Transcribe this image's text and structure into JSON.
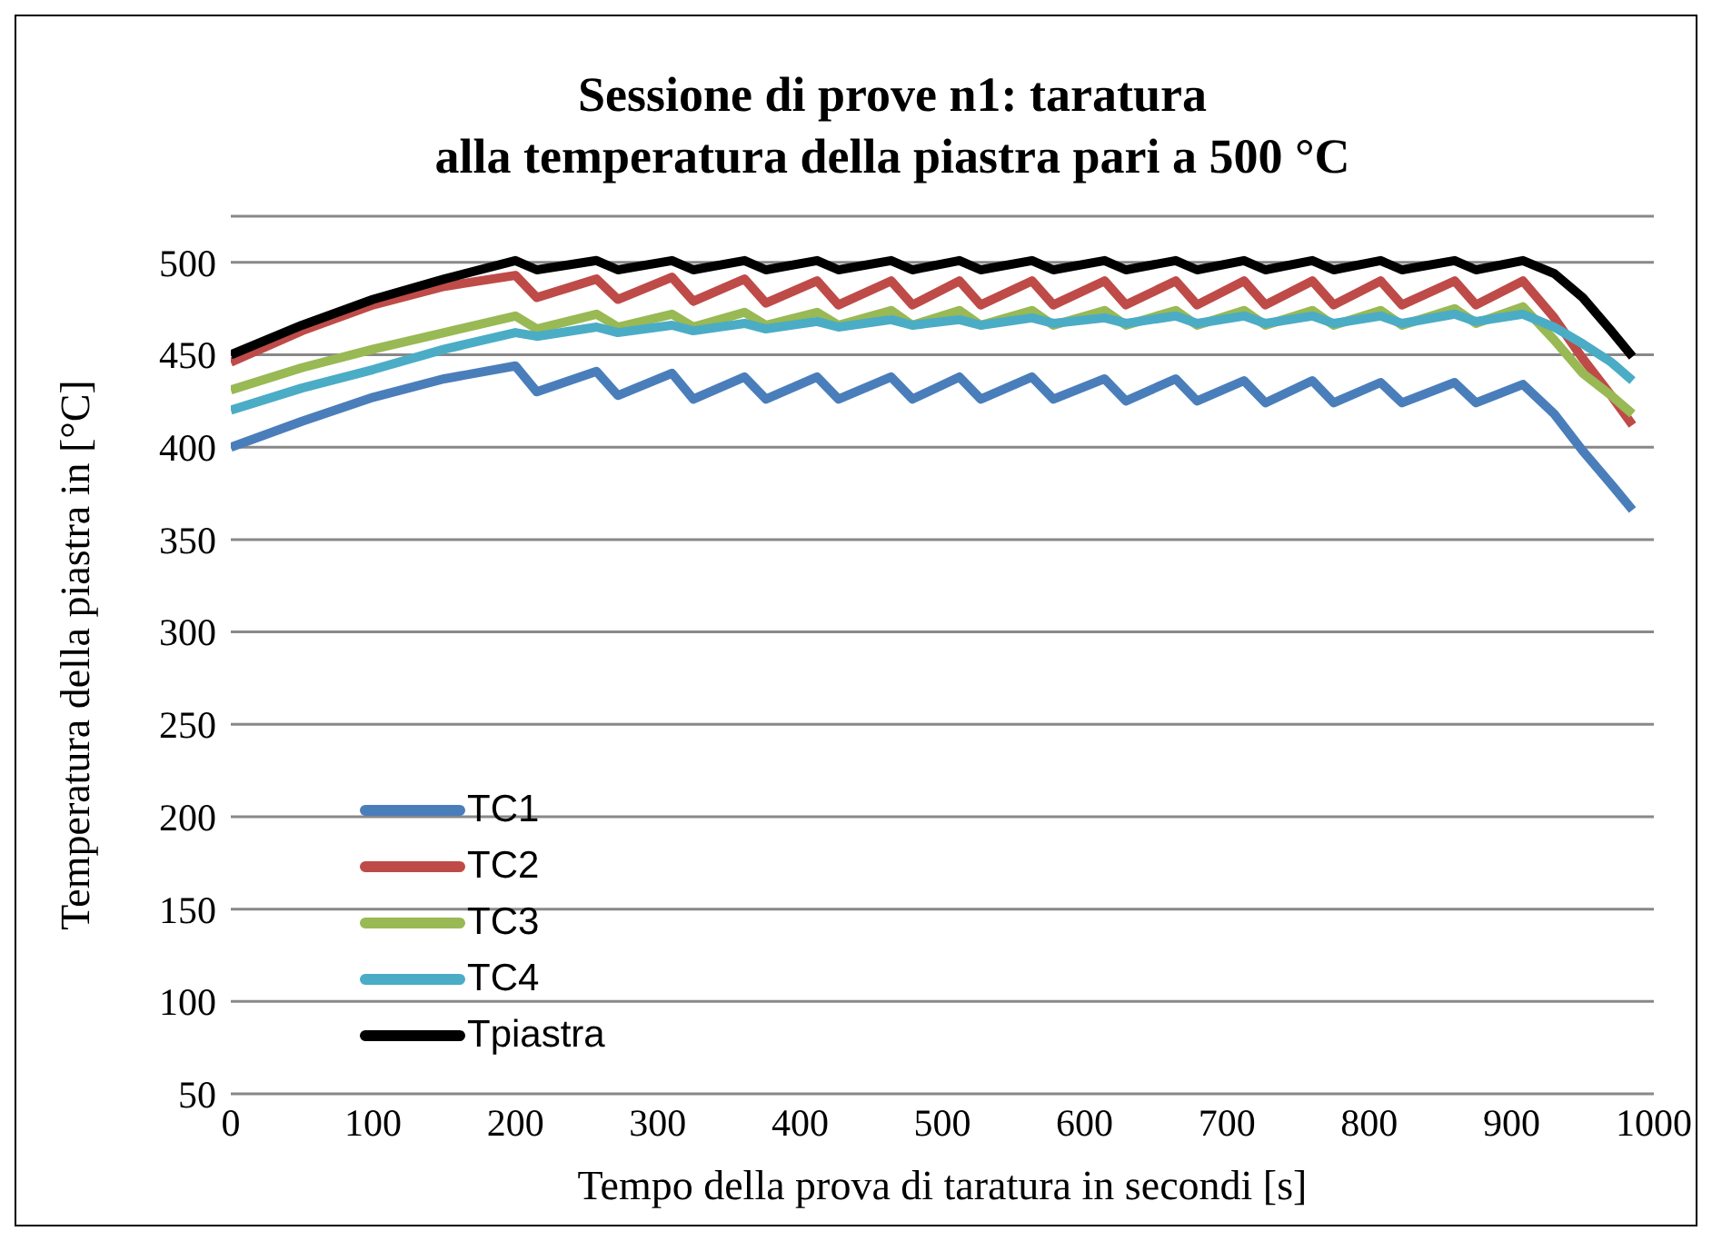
{
  "chart_data": {
    "type": "line",
    "title": "Sessione di prove n1: taratura\nalla temperatura della piastra pari a 500 °C",
    "xlabel": "Tempo della prova di taratura in secondi [s]",
    "ylabel": "Temperatura della piastra in [°C]",
    "x": [
      0,
      50,
      100,
      150,
      200,
      215,
      257,
      272,
      310,
      325,
      361,
      376,
      412,
      427,
      464,
      479,
      512,
      527,
      563,
      578,
      614,
      629,
      664,
      679,
      712,
      727,
      760,
      775,
      808,
      823,
      860,
      875,
      908,
      930,
      950,
      970,
      985
    ],
    "series": [
      {
        "name": "TC1",
        "color": "#4a7ebb",
        "values": [
          400,
          414,
          427,
          437,
          444,
          430,
          441,
          428,
          440,
          426,
          438,
          426,
          438,
          426,
          438,
          426,
          438,
          426,
          438,
          426,
          437,
          425,
          437,
          425,
          436,
          424,
          436,
          424,
          435,
          424,
          435,
          424,
          434,
          418,
          398,
          380,
          366
        ]
      },
      {
        "name": "TC2",
        "color": "#be4b48",
        "values": [
          446,
          463,
          477,
          487,
          493,
          481,
          491,
          480,
          492,
          479,
          491,
          478,
          490,
          477,
          490,
          477,
          490,
          477,
          490,
          477,
          490,
          477,
          490,
          477,
          490,
          477,
          490,
          477,
          490,
          477,
          490,
          477,
          490,
          470,
          448,
          428,
          412
        ]
      },
      {
        "name": "TC3",
        "color": "#98b954",
        "values": [
          431,
          443,
          453,
          462,
          471,
          464,
          472,
          465,
          472,
          465,
          473,
          466,
          473,
          466,
          474,
          466,
          474,
          466,
          474,
          466,
          474,
          466,
          474,
          466,
          474,
          466,
          474,
          466,
          474,
          466,
          475,
          467,
          476,
          458,
          440,
          428,
          418
        ]
      },
      {
        "name": "TC4",
        "color": "#4bacc6",
        "values": [
          420,
          432,
          442,
          453,
          462,
          460,
          465,
          462,
          466,
          463,
          467,
          464,
          468,
          465,
          469,
          466,
          469,
          466,
          470,
          467,
          470,
          467,
          471,
          467,
          471,
          467,
          471,
          467,
          471,
          467,
          472,
          468,
          472,
          465,
          456,
          446,
          436
        ]
      },
      {
        "name": "Tpiastra",
        "color": "#000000",
        "values": [
          450,
          466,
          480,
          491,
          501,
          496,
          501,
          496,
          501,
          496,
          501,
          496,
          501,
          496,
          501,
          496,
          501,
          496,
          501,
          496,
          501,
          496,
          501,
          496,
          501,
          496,
          501,
          496,
          501,
          496,
          501,
          496,
          501,
          494,
          481,
          463,
          449
        ]
      }
    ],
    "xlim": [
      0,
      1000
    ],
    "xticks": [
      0,
      100,
      200,
      300,
      400,
      500,
      600,
      700,
      800,
      900,
      1000
    ],
    "ylim": [
      50,
      525
    ],
    "yticks": [
      50,
      100,
      150,
      200,
      250,
      300,
      350,
      400,
      450,
      500
    ],
    "grid": "y",
    "legend": "bottom left",
    "marker": "none",
    "line_style": "solid"
  }
}
